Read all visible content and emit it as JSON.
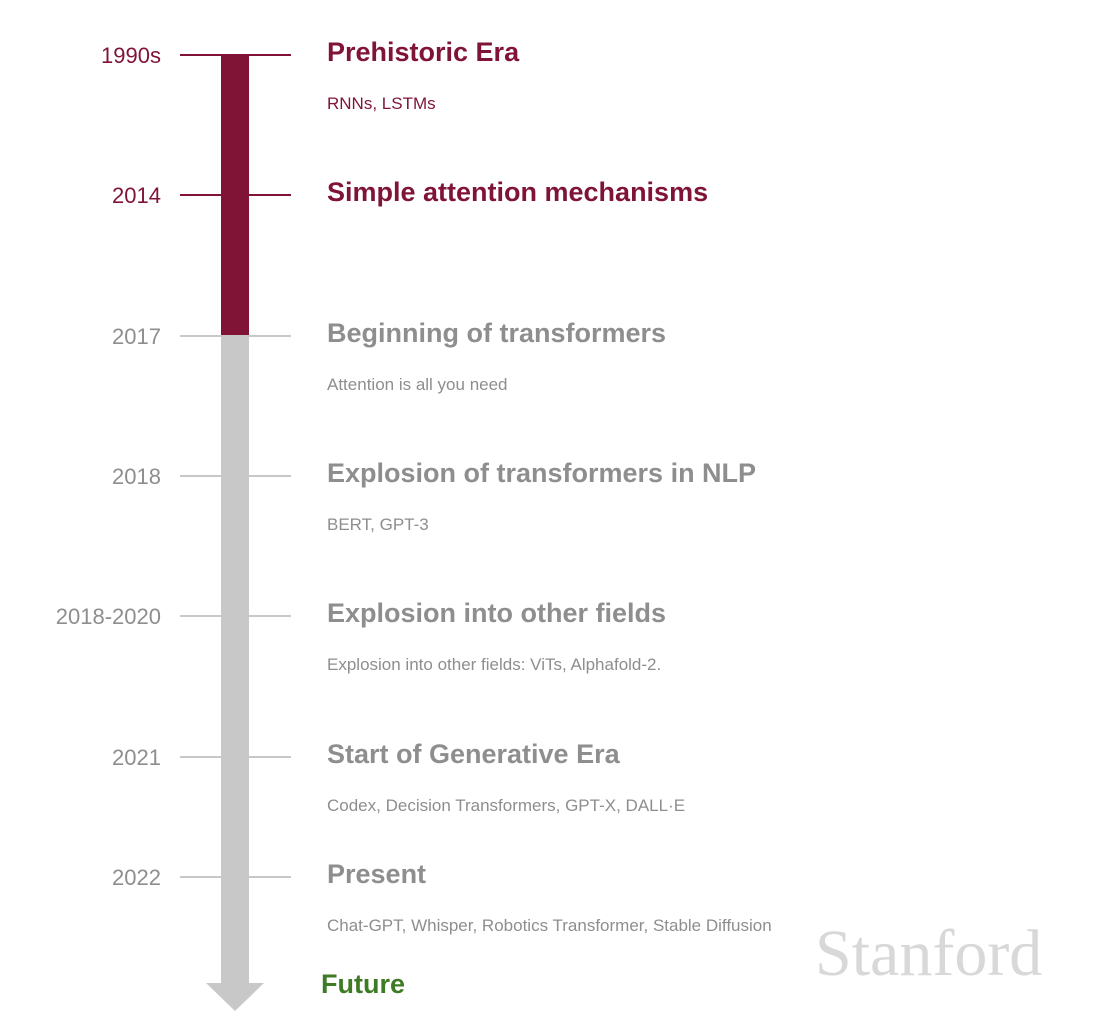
{
  "colors": {
    "past": "#7f1437",
    "upcoming_text": "#8e8e8e",
    "upcoming_line": "#c8c8c8",
    "future": "#3f7a24",
    "watermark": "#d8d8d8"
  },
  "events": [
    {
      "year": "1990s",
      "title": "Prehistoric Era",
      "detail": "RNNs, LSTMs",
      "status": "past"
    },
    {
      "year": "2014",
      "title": "Simple attention mechanisms",
      "detail": "",
      "status": "past"
    },
    {
      "year": "2017",
      "title": "Beginning of transformers",
      "detail": "Attention is all you need",
      "status": "upcoming"
    },
    {
      "year": "2018",
      "title": "Explosion of transformers in NLP",
      "detail": "BERT, GPT-3",
      "status": "upcoming"
    },
    {
      "year": "2018-2020",
      "title": "Explosion into other fields",
      "detail": "Explosion into other fields: ViTs, Alphafold-2.",
      "status": "upcoming"
    },
    {
      "year": "2021",
      "title": "Start of Generative Era",
      "detail": "Codex, Decision Transformers, GPT-X,  DALL·E",
      "status": "upcoming"
    },
    {
      "year": "2022",
      "title": "Present",
      "detail": "Chat-GPT, Whisper, Robotics Transformer, Stable Diffusion",
      "status": "upcoming"
    }
  ],
  "future_label": "Future",
  "watermark": "Stanford"
}
